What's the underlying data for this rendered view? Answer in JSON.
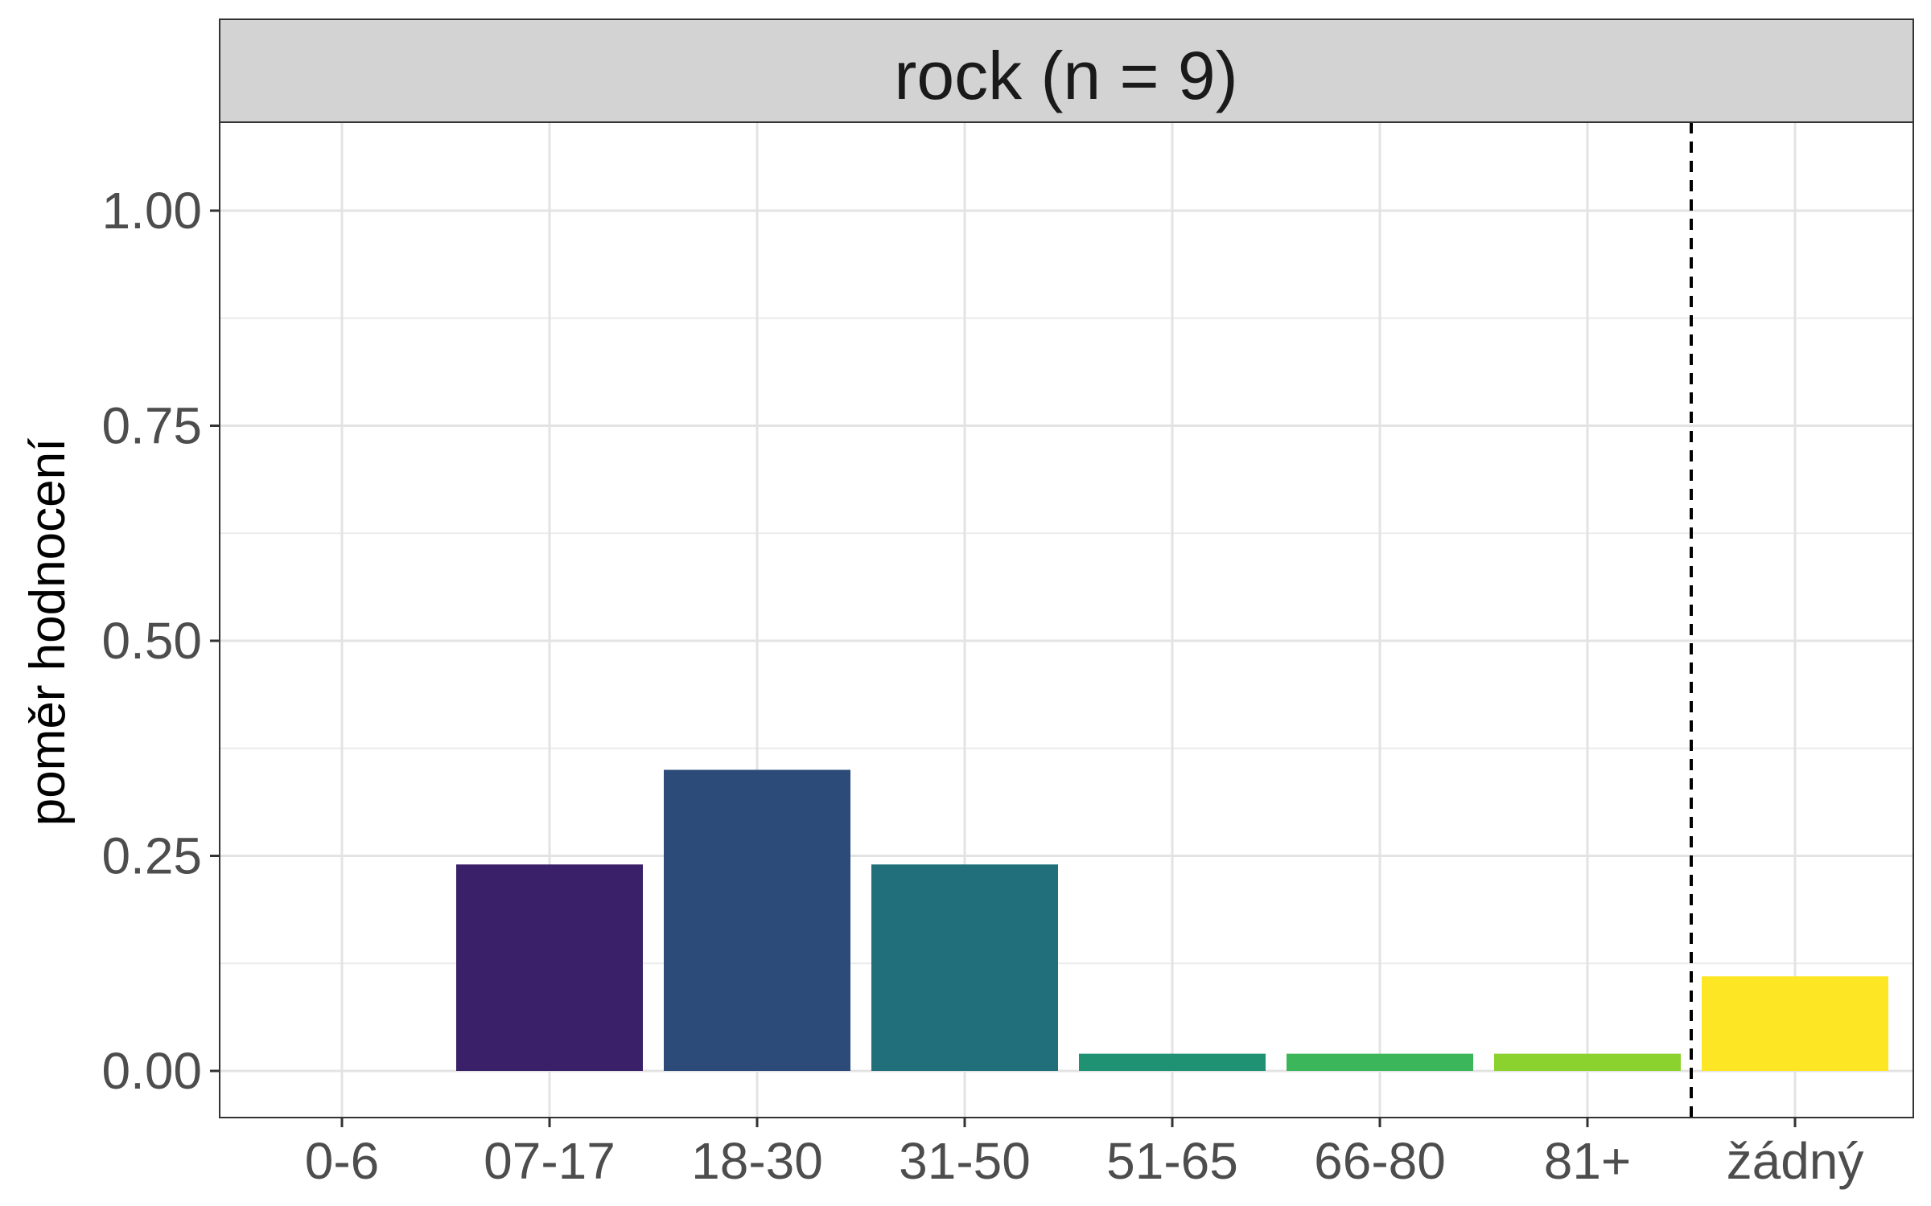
{
  "chart_data": {
    "type": "bar",
    "panel_title": "rock (n = 9)",
    "categories": [
      "0-6",
      "07-17",
      "18-30",
      "31-50",
      "51-65",
      "66-80",
      "81+",
      "žádný"
    ],
    "values": [
      0,
      0.24,
      0.35,
      0.24,
      0.02,
      0.02,
      0.02,
      0.11
    ],
    "colors": [
      "#440154",
      "#3a2068",
      "#2c4b79",
      "#206f7b",
      "#1f9274",
      "#3cb65a",
      "#8cd22f",
      "#fde725"
    ],
    "xlabel": "",
    "ylabel": "poměr hodnocení",
    "ylim": [
      -0.05,
      1.1
    ],
    "yticks": [
      0.0,
      0.25,
      0.5,
      0.75,
      1.0
    ],
    "ytick_labels": [
      "0.00",
      "0.25",
      "0.50",
      "0.75",
      "1.00"
    ],
    "reference_line": {
      "style": "dashed",
      "between": [
        "81+",
        "žádný"
      ]
    },
    "grid": true,
    "legend": "none"
  }
}
